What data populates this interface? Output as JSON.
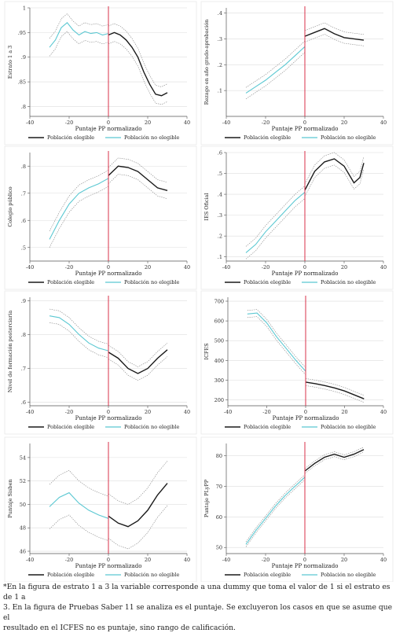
{
  "colors": {
    "elegible": "#1a1a1a",
    "no_elegible": "#5bc8d2",
    "cutoff": "#d9304a",
    "ci": "#888888",
    "grid": "#dddddd"
  },
  "legend": {
    "elegible": "Población elegible",
    "no_elegible": "Población no elegible"
  },
  "xlabel": "Puntaje PP normalizado",
  "chart_data": [
    {
      "type": "line",
      "ylabel": "Estrato 1 a 3",
      "xlabel": "Puntaje PP normalizado",
      "xlim": [
        -40,
        40
      ],
      "ylim": [
        0.78,
        1.0
      ],
      "xticks": [
        "-40",
        "-20",
        "0",
        "20",
        "40"
      ],
      "yticks": [
        ".8",
        ".85",
        ".9",
        ".95",
        "1"
      ],
      "ytick_values": [
        0.8,
        0.85,
        0.9,
        0.95,
        1.0
      ],
      "cutoff": 0,
      "ci_halfwidth": 0.018,
      "series": [
        {
          "name": "Población no elegible",
          "x": [
            -30,
            -27,
            -24,
            -21,
            -18,
            -15,
            -12,
            -9,
            -6,
            -3,
            0
          ],
          "y": [
            0.92,
            0.935,
            0.96,
            0.97,
            0.955,
            0.945,
            0.952,
            0.948,
            0.95,
            0.945,
            0.948
          ]
        },
        {
          "name": "Población elegible",
          "x": [
            0,
            3,
            6,
            9,
            12,
            15,
            18,
            21,
            24,
            27,
            30
          ],
          "y": [
            0.945,
            0.95,
            0.945,
            0.935,
            0.92,
            0.9,
            0.87,
            0.845,
            0.825,
            0.822,
            0.828
          ]
        }
      ]
    },
    {
      "type": "line",
      "ylabel": "Rezago en año grado-aprobación",
      "xlabel": "Puntaje PP normalizado",
      "xlim": [
        -40,
        40
      ],
      "ylim": [
        0.0,
        0.42
      ],
      "xticks": [
        "-40",
        "-20",
        "0",
        "20",
        "40"
      ],
      "yticks": [
        ".1",
        ".2",
        ".3",
        ".4"
      ],
      "ytick_values": [
        0.1,
        0.2,
        0.3,
        0.4
      ],
      "cutoff": 0,
      "ci_halfwidth": 0.022,
      "series": [
        {
          "name": "Población no elegible",
          "x": [
            -30,
            -25,
            -20,
            -15,
            -10,
            -5,
            0
          ],
          "y": [
            0.09,
            0.115,
            0.14,
            0.17,
            0.2,
            0.235,
            0.27
          ]
        },
        {
          "name": "Población elegible",
          "x": [
            0,
            5,
            10,
            15,
            20,
            25,
            30
          ],
          "y": [
            0.31,
            0.325,
            0.34,
            0.32,
            0.305,
            0.3,
            0.295
          ]
        }
      ]
    },
    {
      "type": "line",
      "ylabel": "Colegio público",
      "xlabel": "Puntaje PP normalizado",
      "xlim": [
        -40,
        40
      ],
      "ylim": [
        0.45,
        0.85
      ],
      "xticks": [
        "-40",
        "-20",
        "0",
        "20",
        "40"
      ],
      "yticks": [
        ".5",
        ".6",
        ".7",
        ".8"
      ],
      "ytick_values": [
        0.5,
        0.6,
        0.7,
        0.8
      ],
      "cutoff": 0,
      "ci_halfwidth": 0.03,
      "series": [
        {
          "name": "Población no elegible",
          "x": [
            -30,
            -25,
            -20,
            -15,
            -10,
            -5,
            0
          ],
          "y": [
            0.53,
            0.6,
            0.66,
            0.7,
            0.72,
            0.735,
            0.755
          ]
        },
        {
          "name": "Población elegible",
          "x": [
            0,
            5,
            10,
            15,
            20,
            25,
            30
          ],
          "y": [
            0.765,
            0.8,
            0.795,
            0.78,
            0.75,
            0.72,
            0.71
          ]
        }
      ]
    },
    {
      "type": "line",
      "ylabel": "IES Oficial",
      "xlabel": "Puntaje PP normalizado",
      "xlim": [
        -40,
        40
      ],
      "ylim": [
        0.08,
        0.6
      ],
      "xticks": [
        "-40",
        "-20",
        "0",
        "20",
        "40"
      ],
      "yticks": [
        ".1",
        ".2",
        ".3",
        ".4",
        ".5",
        ".6"
      ],
      "ytick_values": [
        0.1,
        0.2,
        0.3,
        0.4,
        0.5,
        0.6
      ],
      "cutoff": 0,
      "ci_halfwidth": 0.03,
      "series": [
        {
          "name": "Población no elegible",
          "x": [
            -30,
            -25,
            -20,
            -15,
            -10,
            -5,
            0
          ],
          "y": [
            0.12,
            0.16,
            0.22,
            0.27,
            0.32,
            0.37,
            0.41
          ]
        },
        {
          "name": "Población elegible",
          "x": [
            0,
            5,
            10,
            15,
            20,
            25,
            28,
            30
          ],
          "y": [
            0.42,
            0.51,
            0.555,
            0.57,
            0.535,
            0.455,
            0.48,
            0.55
          ]
        }
      ]
    },
    {
      "type": "line",
      "ylabel": "Nivel de formación posterciaria",
      "xlabel": "Puntaje PP normalizado",
      "xlim": [
        -40,
        40
      ],
      "ylim": [
        0.59,
        0.91
      ],
      "xticks": [
        "-40",
        "-20",
        "0",
        "20",
        "40"
      ],
      "yticks": [
        ".6",
        ".7",
        ".8",
        ".9"
      ],
      "ytick_values": [
        0.6,
        0.7,
        0.8,
        0.9
      ],
      "cutoff": 0,
      "ci_halfwidth": 0.02,
      "series": [
        {
          "name": "Población no elegible",
          "x": [
            -30,
            -25,
            -20,
            -15,
            -10,
            -5,
            0
          ],
          "y": [
            0.855,
            0.85,
            0.83,
            0.8,
            0.775,
            0.76,
            0.752
          ]
        },
        {
          "name": "Población elegible",
          "x": [
            0,
            5,
            10,
            15,
            20,
            25,
            30
          ],
          "y": [
            0.748,
            0.73,
            0.7,
            0.685,
            0.7,
            0.73,
            0.755
          ]
        }
      ]
    },
    {
      "type": "line",
      "ylabel": "ICFES",
      "xlabel": "Puntaje PP normalizado",
      "xlim": [
        -40,
        40
      ],
      "ylim": [
        170,
        720
      ],
      "xticks": [
        "-40",
        "-20",
        "0",
        "20",
        "40"
      ],
      "yticks": [
        "200",
        "300",
        "400",
        "500",
        "600",
        "700"
      ],
      "ytick_values": [
        200,
        300,
        400,
        500,
        600,
        700
      ],
      "cutoff": 0,
      "ci_halfwidth": 18,
      "series": [
        {
          "name": "Población no elegible",
          "x": [
            -30,
            -25,
            -20,
            -15,
            -10,
            -5,
            0
          ],
          "y": [
            635,
            640,
            590,
            520,
            460,
            400,
            345
          ]
        },
        {
          "name": "Población elegible",
          "x": [
            0,
            5,
            10,
            15,
            20,
            25,
            30
          ],
          "y": [
            290,
            282,
            272,
            260,
            245,
            225,
            205
          ]
        }
      ]
    },
    {
      "type": "line",
      "ylabel": "Puntaje Sisben",
      "xlabel": "Puntaje PP normalizado",
      "xlim": [
        -40,
        40
      ],
      "ylim": [
        45.8,
        55.2
      ],
      "xticks": [
        "-40",
        "-20",
        "0",
        "20",
        "40"
      ],
      "yticks": [
        "46",
        "48",
        "50",
        "52",
        "54"
      ],
      "ytick_values": [
        46,
        48,
        50,
        52,
        54
      ],
      "cutoff": 0,
      "ci_halfwidth": 1.9,
      "series": [
        {
          "name": "Población no elegible",
          "x": [
            -30,
            -25,
            -20,
            -15,
            -10,
            -5,
            0
          ],
          "y": [
            49.8,
            50.6,
            51.0,
            50.1,
            49.5,
            49.1,
            48.8
          ]
        },
        {
          "name": "Población elegible",
          "x": [
            0,
            5,
            10,
            15,
            20,
            25,
            30
          ],
          "y": [
            49.0,
            48.4,
            48.1,
            48.6,
            49.5,
            50.8,
            51.8
          ]
        }
      ]
    },
    {
      "type": "line",
      "ylabel": "Puntaje PLyPP",
      "xlabel": "Puntaje PP normalizado",
      "xlim": [
        -40,
        40
      ],
      "ylim": [
        48,
        84
      ],
      "xticks": [
        "-40",
        "-20",
        "0",
        "20",
        "40"
      ],
      "yticks": [
        "50",
        "60",
        "70",
        "80"
      ],
      "ytick_values": [
        50,
        60,
        70,
        80
      ],
      "cutoff": 0,
      "ci_halfwidth": 0.8,
      "series": [
        {
          "name": "Población no elegible",
          "x": [
            -30,
            -25,
            -20,
            -15,
            -10,
            -5,
            0
          ],
          "y": [
            51,
            55.5,
            59.5,
            63.5,
            67,
            70,
            73
          ]
        },
        {
          "name": "Población elegible",
          "x": [
            0,
            5,
            10,
            15,
            20,
            25,
            30
          ],
          "y": [
            75,
            77.5,
            79.5,
            80.5,
            79.5,
            80.5,
            82
          ]
        }
      ]
    }
  ],
  "footnote": {
    "line1": "*En la figura de estrato 1 a 3 la variable corresponde a una dummy que toma el valor de 1 si el estrato es de 1 a",
    "line2": "3. En la figura de Pruebas Saber 11 se analiza es el puntaje. Se excluyeron los casos en que se asume que el",
    "line3": "resultado en el ICFES no es puntaje, sino rango de calificación."
  }
}
